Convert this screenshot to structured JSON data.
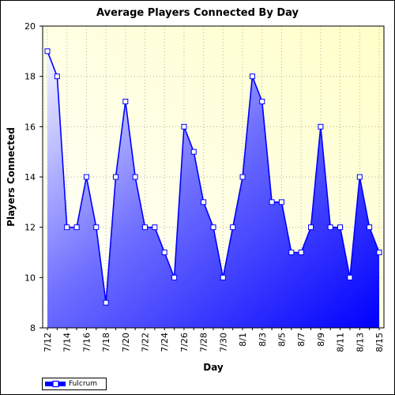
{
  "chart_data": {
    "type": "area",
    "title": "Average Players Connected By Day",
    "xlabel": "Day",
    "ylabel": "Players Connected",
    "ylim": [
      8,
      20
    ],
    "yticks": [
      8,
      10,
      12,
      14,
      16,
      18,
      20
    ],
    "grid": true,
    "legend_position": "bottom-left",
    "x": [
      "7/12",
      "7/13",
      "7/14",
      "7/15",
      "7/16",
      "7/17",
      "7/18",
      "7/19",
      "7/20",
      "7/21",
      "7/22",
      "7/23",
      "7/24",
      "7/25",
      "7/26",
      "7/27",
      "7/28",
      "7/29",
      "7/30",
      "7/31",
      "8/1",
      "8/2",
      "8/3",
      "8/4",
      "8/5",
      "8/6",
      "8/7",
      "8/8",
      "8/9",
      "8/10",
      "8/11",
      "8/12",
      "8/13",
      "8/14",
      "8/15"
    ],
    "xtick_labels": [
      "7/12",
      "7/14",
      "7/16",
      "7/18",
      "7/20",
      "7/22",
      "7/24",
      "7/26",
      "7/28",
      "7/30",
      "8/1",
      "8/3",
      "8/5",
      "8/7",
      "8/9",
      "8/11",
      "8/13",
      "8/15"
    ],
    "series": [
      {
        "name": "Fulcrum",
        "values": [
          19,
          18,
          12,
          12,
          14,
          12,
          9,
          14,
          17,
          14,
          12,
          12,
          11,
          10,
          16,
          15,
          13,
          12,
          10,
          12,
          14,
          18,
          17,
          13,
          13,
          11,
          11,
          12,
          16,
          12,
          12,
          10,
          14,
          12,
          11
        ]
      }
    ],
    "colors": {
      "line": "#0000ff",
      "fill_light": "#ffffff",
      "fill_dark": "#0000ff",
      "plot_bg_light": "#ffffe8",
      "plot_bg_dark": "#ffffc8",
      "grid": "#b4b4a0"
    }
  }
}
